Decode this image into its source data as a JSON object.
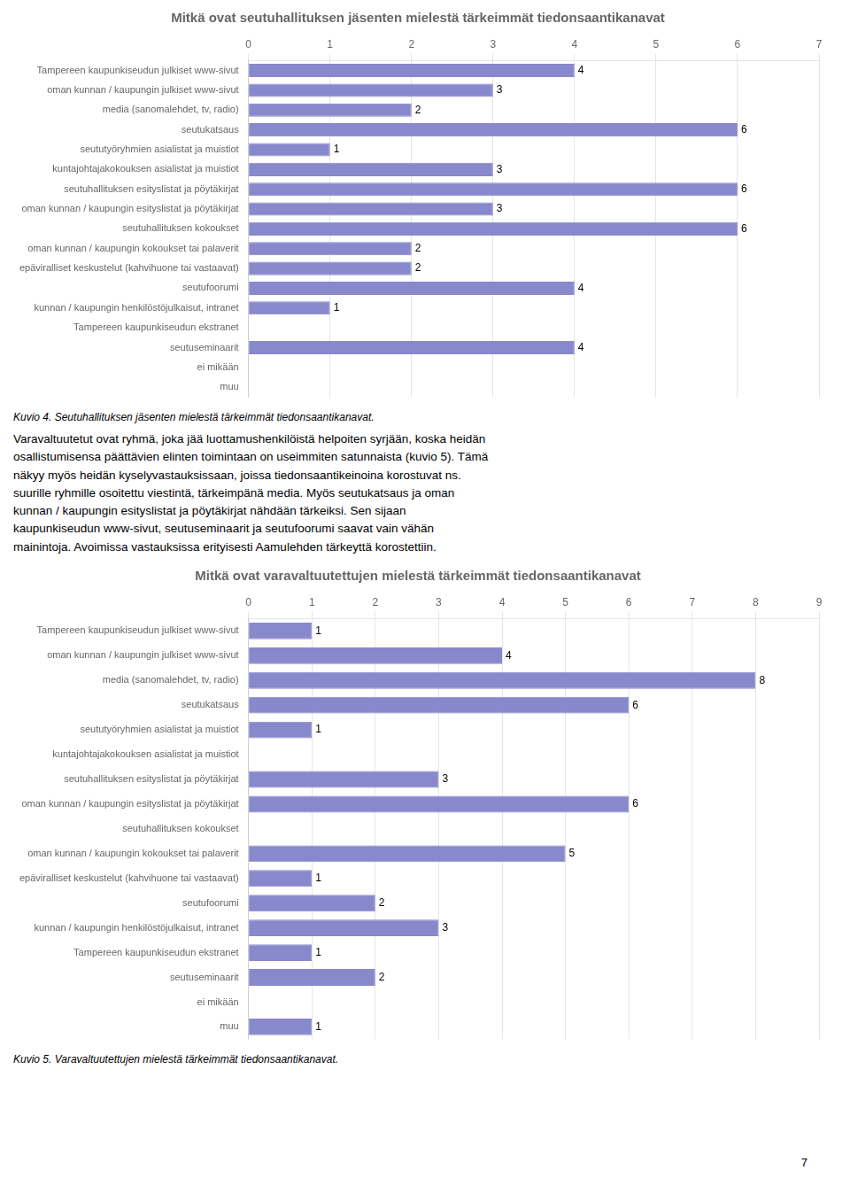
{
  "chart_data": [
    {
      "type": "bar",
      "orientation": "horizontal",
      "title": "Mitkä ovat seutuhallituksen jäsenten mielestä tärkeimmät tiedonsaantikanavat",
      "categories": [
        "Tampereen kaupunkiseudun julkiset www-sivut",
        "oman kunnan / kaupungin julkiset www-sivut",
        "media (sanomalehdet, tv, radio)",
        "seutukatsaus",
        "seututyöryhmien asialistat ja muistiot",
        "kuntajohtajakokouksen asialistat ja muistiot",
        "seutuhallituksen esityslistat ja pöytäkirjat",
        "oman kunnan / kaupungin esityslistat ja pöytäkirjat",
        "seutuhallituksen kokoukset",
        "oman kunnan / kaupungin kokoukset tai palaverit",
        "epäviralliset keskustelut (kahvihuone tai vastaavat)",
        "seutufoorumi",
        "kunnan / kaupungin henkilöstöjulkaisut, intranet",
        "Tampereen kaupunkiseudun ekstranet",
        "seutuseminaarit",
        "ei mikään",
        "muu"
      ],
      "values": [
        4,
        3,
        2,
        6,
        1,
        3,
        6,
        3,
        6,
        2,
        2,
        4,
        1,
        0,
        4,
        0,
        0
      ],
      "color": "#8888cc",
      "xlim": [
        0,
        7
      ],
      "xticks": [
        0,
        1,
        2,
        3,
        4,
        5,
        6,
        7
      ],
      "grid": true,
      "data_labels": true,
      "caption": "Kuvio 4. Seutuhallituksen jäsenten mielestä tärkeimmät tiedonsaantikanavat."
    },
    {
      "type": "bar",
      "orientation": "horizontal",
      "title": "Mitkä ovat varavaltuutettujen mielestä tärkeimmät tiedonsaantikanavat",
      "categories": [
        "Tampereen kaupunkiseudun julkiset www-sivut",
        "oman kunnan / kaupungin julkiset www-sivut",
        "media (sanomalehdet, tv, radio)",
        "seutukatsaus",
        "seututyöryhmien asialistat ja muistiot",
        "kuntajohtajakokouksen asialistat ja muistiot",
        "seutuhallituksen esityslistat ja pöytäkirjat",
        "oman kunnan / kaupungin esityslistat ja pöytäkirjat",
        "seutuhallituksen kokoukset",
        "oman kunnan / kaupungin kokoukset tai palaverit",
        "epäviralliset keskustelut (kahvihuone tai vastaavat)",
        "seutufoorumi",
        "kunnan / kaupungin henkilöstöjulkaisut, intranet",
        "Tampereen kaupunkiseudun ekstranet",
        "seutuseminaarit",
        "ei mikään",
        "muu"
      ],
      "values": [
        1,
        4,
        8,
        6,
        1,
        0,
        3,
        6,
        0,
        5,
        1,
        2,
        3,
        1,
        2,
        0,
        1
      ],
      "color": "#8888cc",
      "xlim": [
        0,
        9
      ],
      "xticks": [
        0,
        1,
        2,
        3,
        4,
        5,
        6,
        7,
        8,
        9
      ],
      "grid": true,
      "data_labels": true,
      "caption": "Kuvio 5. Varavaltuutettujen mielestä tärkeimmät tiedonsaantikanavat."
    }
  ],
  "text": "Varavaltuutetut ovat ryhmä, joka jää luottamushenkilöistä helpoiten syrjään, koska heidän\nosallistumisensa päättävien elinten toimintaan on useimmiten satunnaista (kuvio 5). Tämä\nnäkyy myös heidän kyselyvastauksissaan, joissa tiedonsaantikeinoina korostuvat ns.\nsuurille ryhmille osoitettu viestintä, tärkeimpänä media. Myös seutukatsaus ja oman\nkunnan / kaupungin esityslistat ja pöytäkirjat nähdään tärkeiksi. Sen sijaan\nkaupunkiseudun www-sivut, seutuseminaarit ja seutufoorumi saavat vain vähän\nmainintoja. Avoimissa vastauksissa erityisesti Aamulehden tärkeyttä korostettiin.",
  "page_number": "7"
}
